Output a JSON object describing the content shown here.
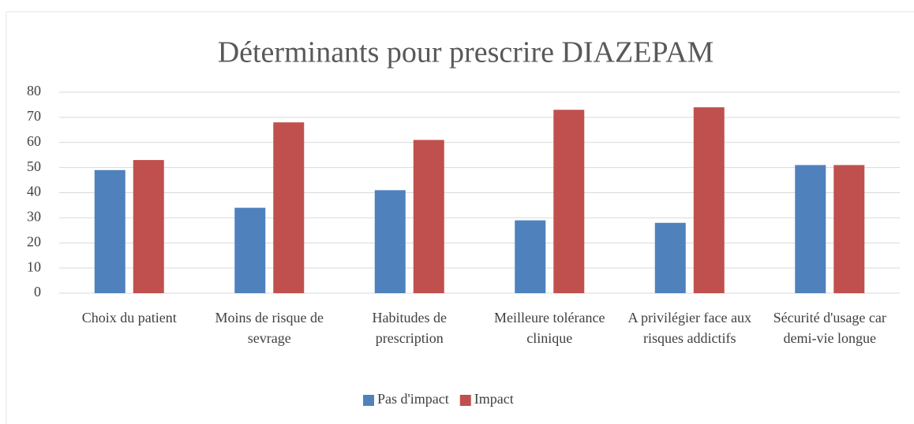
{
  "chart_data": {
    "type": "bar",
    "title": "Déterminants pour prescrire DIAZEPAM",
    "categories": [
      "Choix du patient",
      "Moins de risque de sevrage",
      "Habitudes de prescription",
      "Meilleure tolérance clinique",
      "A privilégier face aux risques addictifs",
      "Sécurité d'usage car demi-vie longue"
    ],
    "series": [
      {
        "name": "Pas d'impact",
        "color": "#4f81bd",
        "values": [
          49,
          34,
          41,
          29,
          28,
          51
        ]
      },
      {
        "name": "Impact",
        "color": "#c0504d",
        "values": [
          53,
          68,
          61,
          73,
          74,
          51
        ]
      }
    ],
    "ylim": [
      0,
      80
    ],
    "yticks": [
      0,
      10,
      20,
      30,
      40,
      50,
      60,
      70,
      80
    ],
    "grid": true,
    "legend": "bottom"
  }
}
